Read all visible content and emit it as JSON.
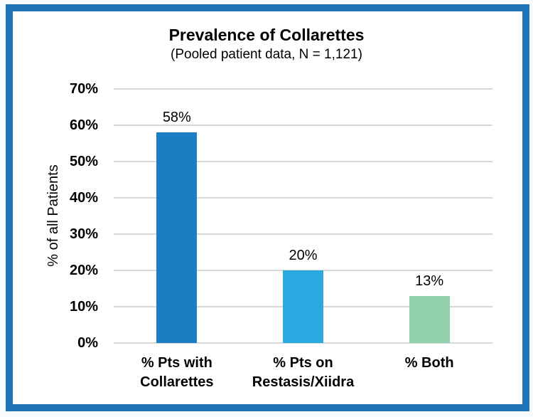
{
  "chart_data": {
    "type": "bar",
    "title": "Prevalence of Collarettes",
    "subtitle": "(Pooled patient data, N = 1,121)",
    "xlabel": "",
    "ylabel": "% of all Patients",
    "categories": [
      "% Pts with\nCollarettes",
      "% Pts on\nRestasis/Xiidra",
      "% Both"
    ],
    "values": [
      58,
      20,
      13
    ],
    "data_labels": [
      "58%",
      "20%",
      "13%"
    ],
    "bar_colors": [
      "#1b7ec2",
      "#29abe2",
      "#92d0ae"
    ],
    "ylim": [
      0,
      70
    ],
    "yticks": [
      0,
      10,
      20,
      30,
      40,
      50,
      60,
      70
    ],
    "ytick_labels": [
      "0%",
      "10%",
      "20%",
      "30%",
      "40%",
      "50%",
      "60%",
      "70%"
    ],
    "grid": true,
    "legend": false
  },
  "colors": {
    "frame_border": "#1f75b8",
    "gridline": "#d8d8d8",
    "page_background": "#f8fbfd",
    "plot_background": "#ffffff",
    "text": "#000000"
  }
}
